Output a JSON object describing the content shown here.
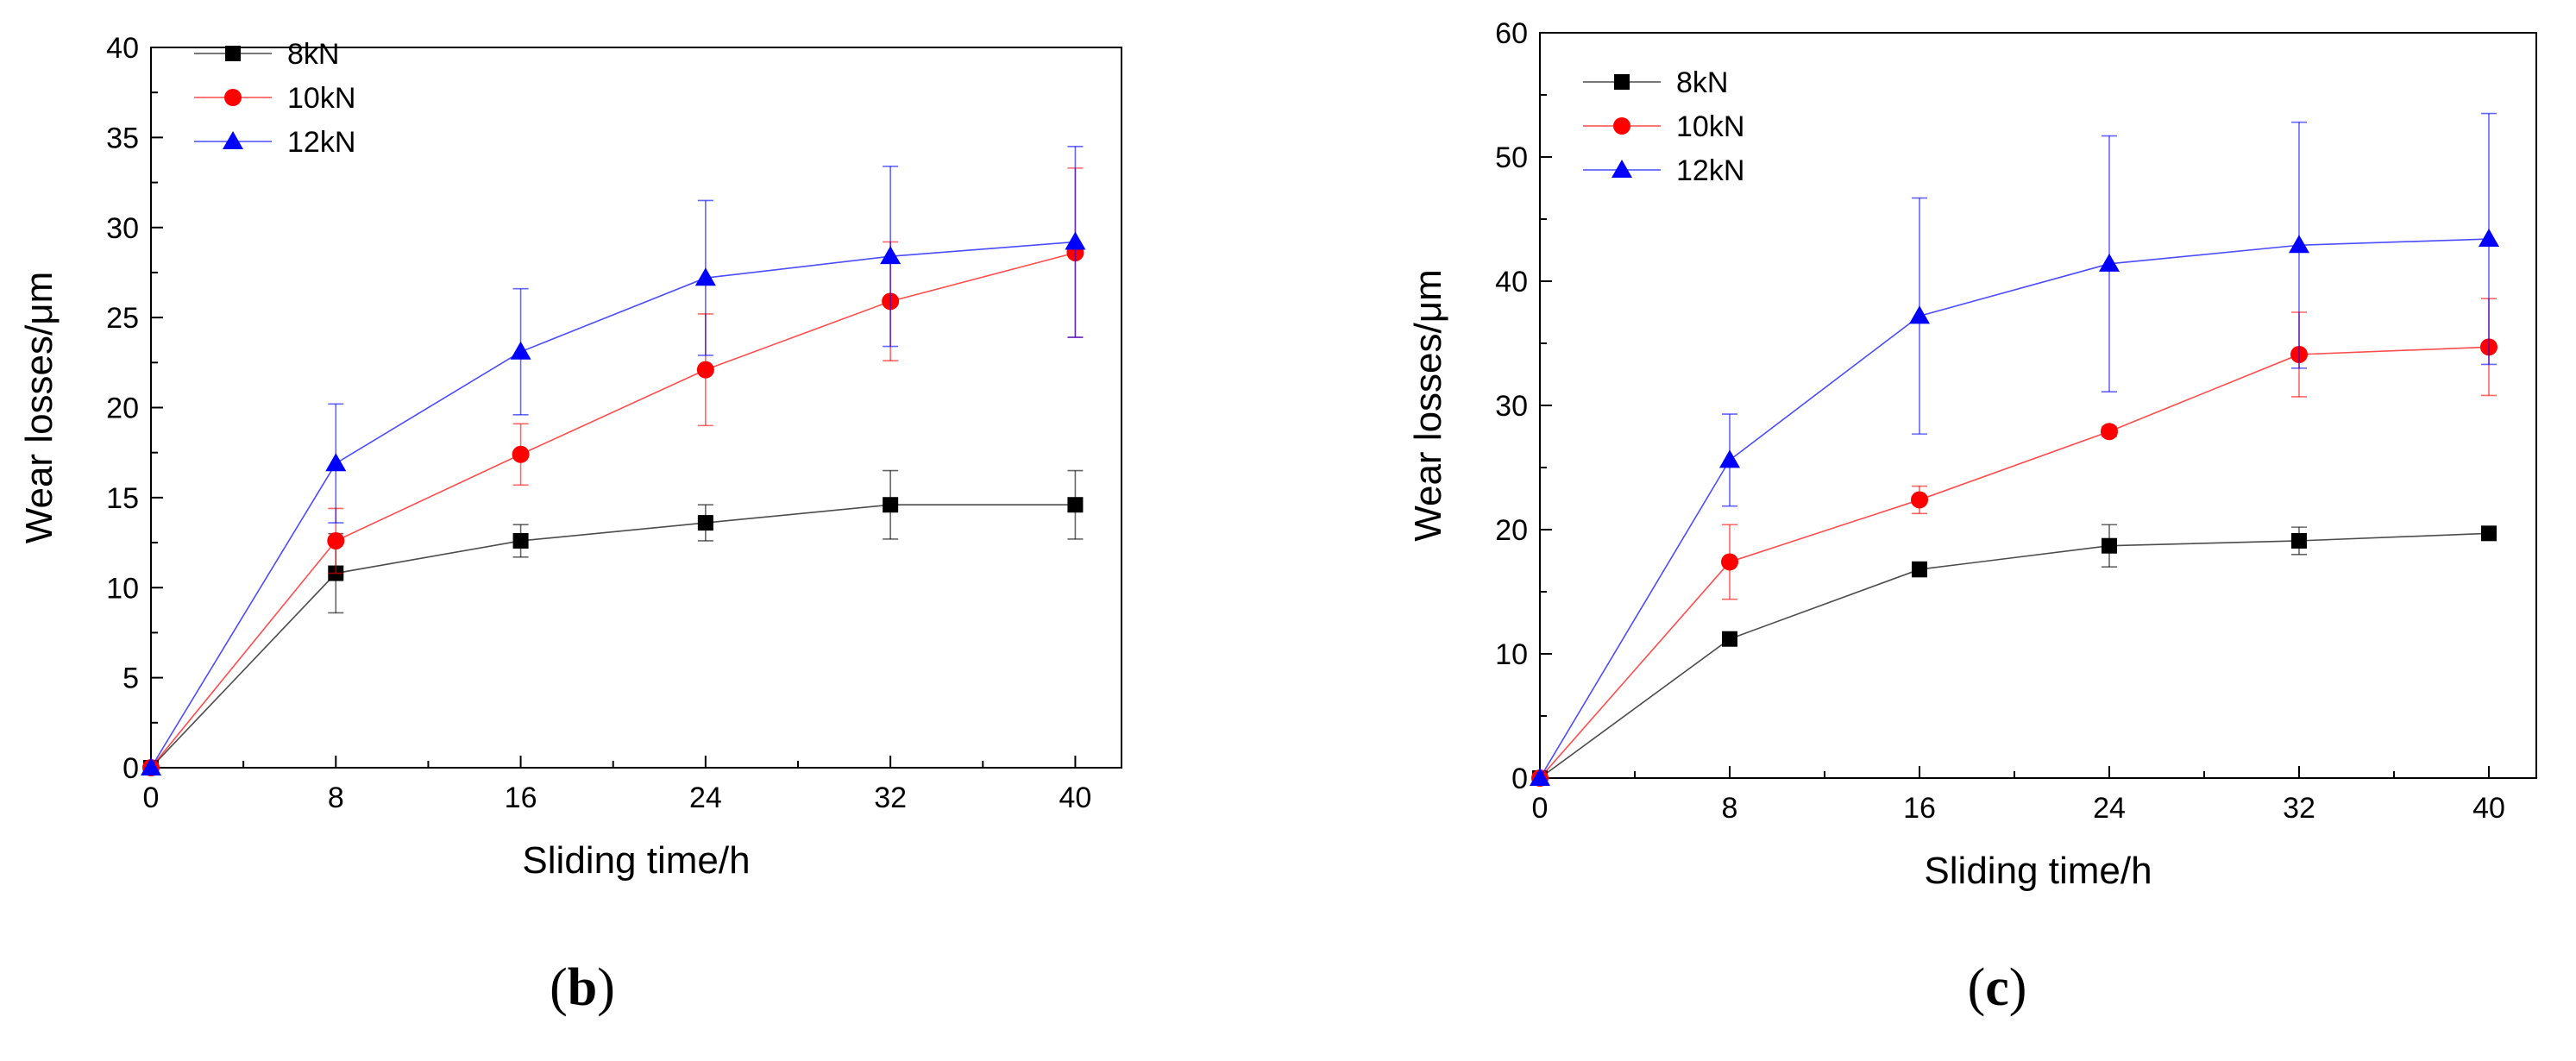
{
  "chart_data": [
    {
      "type": "line",
      "panel_label": "b",
      "title": "",
      "xlabel": "Sliding time/h",
      "ylabel": "Wear losses/μm",
      "xlim": [
        0,
        42
      ],
      "ylim": [
        0,
        40
      ],
      "xticks": [
        0,
        8,
        16,
        24,
        32,
        40
      ],
      "yticks": [
        0,
        5,
        10,
        15,
        20,
        25,
        30,
        35,
        40
      ],
      "grid": false,
      "legend_position": "top-left",
      "x": [
        0,
        8,
        16,
        24,
        32,
        40
      ],
      "series": [
        {
          "name": "8kN",
          "color": "#000000",
          "marker": "square",
          "values": [
            0,
            10.8,
            12.6,
            13.6,
            14.6,
            14.6
          ],
          "errors": [
            0,
            2.2,
            0.9,
            1.0,
            1.9,
            1.9
          ]
        },
        {
          "name": "10kN",
          "color": "#ff0000",
          "marker": "circle",
          "values": [
            0,
            12.6,
            17.4,
            22.1,
            25.9,
            28.6
          ],
          "errors": [
            0,
            1.8,
            1.7,
            3.1,
            3.3,
            4.7
          ]
        },
        {
          "name": "12kN",
          "color": "#0000ff",
          "marker": "triangle",
          "values": [
            0,
            16.9,
            23.1,
            27.2,
            28.4,
            29.2
          ],
          "errors": [
            0,
            3.3,
            3.5,
            4.3,
            5.0,
            5.3
          ]
        }
      ]
    },
    {
      "type": "line",
      "panel_label": "c",
      "title": "",
      "xlabel": "Sliding time/h",
      "ylabel": "Wear losses/μm",
      "xlim": [
        0,
        42
      ],
      "ylim": [
        0,
        60
      ],
      "xticks": [
        0,
        8,
        16,
        24,
        32,
        40
      ],
      "yticks": [
        0,
        10,
        20,
        30,
        40,
        50,
        60
      ],
      "grid": false,
      "legend_position": "top-left",
      "x": [
        0,
        8,
        16,
        24,
        32,
        40
      ],
      "series": [
        {
          "name": "8kN",
          "color": "#000000",
          "marker": "square",
          "values": [
            0,
            11.2,
            16.8,
            18.7,
            19.1,
            19.7
          ],
          "errors": [
            0,
            0.4,
            0.6,
            1.7,
            1.1,
            0.4
          ]
        },
        {
          "name": "10kN",
          "color": "#ff0000",
          "marker": "circle",
          "values": [
            0,
            17.4,
            22.4,
            27.9,
            34.1,
            34.7
          ],
          "errors": [
            0,
            3.0,
            1.1,
            0.4,
            3.4,
            3.9
          ]
        },
        {
          "name": "12kN",
          "color": "#0000ff",
          "marker": "triangle",
          "values": [
            0,
            25.6,
            37.2,
            41.4,
            42.9,
            43.4
          ],
          "errors": [
            0,
            3.7,
            9.5,
            10.3,
            9.9,
            10.1
          ]
        }
      ]
    }
  ]
}
